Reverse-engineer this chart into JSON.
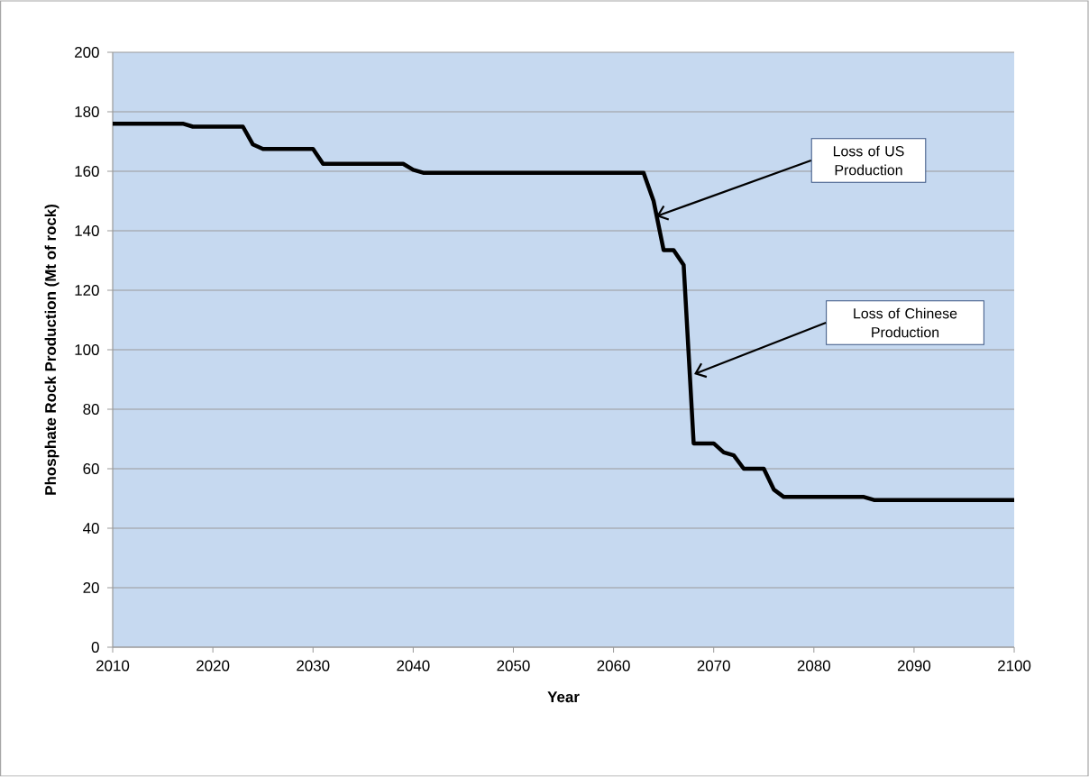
{
  "chart_data": {
    "type": "line",
    "xlabel": "Year",
    "ylabel": "Phosphate Rock Production (Mt of rock)",
    "x": [
      2010,
      2017,
      2018,
      2023,
      2024,
      2025,
      2030,
      2031,
      2039,
      2040,
      2041,
      2063,
      2064,
      2065,
      2066,
      2067,
      2068,
      2070,
      2071,
      2072,
      2073,
      2075,
      2076,
      2077,
      2085,
      2086,
      2100
    ],
    "series": [
      {
        "color": "#000000",
        "values": [
          176,
          176,
          175,
          175,
          169,
          167.5,
          167.5,
          162.5,
          162.5,
          160.5,
          159.5,
          159.5,
          150,
          133.5,
          133.5,
          128.5,
          68.5,
          68.5,
          65.5,
          64.5,
          60,
          60,
          53,
          50.5,
          50.5,
          49.5,
          49.5
        ]
      }
    ],
    "xlim": [
      2010,
      2100
    ],
    "xticks": [
      2010,
      2020,
      2030,
      2040,
      2050,
      2060,
      2070,
      2080,
      2090,
      2100
    ],
    "ylim": [
      0,
      200
    ],
    "yticks": [
      0,
      20,
      40,
      60,
      80,
      100,
      120,
      140,
      160,
      180,
      200
    ],
    "grid": "y",
    "legend": false,
    "marker": "none",
    "line_style": "solid",
    "annotations": [
      "Loss of US Production",
      "Loss of Chinese Production"
    ]
  }
}
